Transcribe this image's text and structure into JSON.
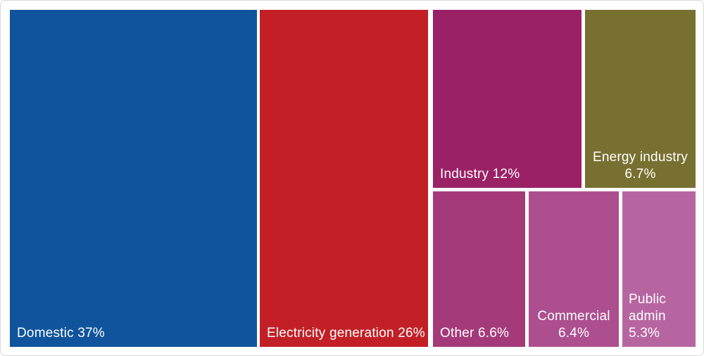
{
  "chart_data": {
    "type": "treemap",
    "title": "",
    "unit": "%",
    "legend": false,
    "background_color": "#ffffff",
    "tile_gap_color": "#ffffff",
    "frame_border_color": "#d8d8d8",
    "label_text_color": "#ffffff",
    "points": [
      {
        "name": "Domestic",
        "value": 37,
        "color": "#10549d",
        "label": "Domestic 37%",
        "label_lines": [
          "Domestic 37%"
        ]
      },
      {
        "name": "Electricity generation",
        "value": 26,
        "color": "#c22026",
        "label": "Electricity generation 26%",
        "label_lines": [
          "Electricity generation 26%"
        ]
      },
      {
        "name": "Industry",
        "value": 12,
        "color": "#9a2166",
        "label": "Industry 12%",
        "label_lines": [
          "Industry 12%"
        ]
      },
      {
        "name": "Energy industry",
        "value": 6.7,
        "color": "#787030",
        "label": "Energy industry 6.7%",
        "label_lines": [
          "Energy industry",
          "6.7%"
        ]
      },
      {
        "name": "Other",
        "value": 6.6,
        "color": "#a53a7a",
        "label": "Other 6.6%",
        "label_lines": [
          "Other 6.6%"
        ]
      },
      {
        "name": "Commercial",
        "value": 6.4,
        "color": "#ad4f8e",
        "label": "Commercial 6.4%",
        "label_lines": [
          "Commercial",
          "6.4%"
        ]
      },
      {
        "name": "Public admin",
        "value": 5.3,
        "color": "#b765a0",
        "label": "Public admin 5.3%",
        "label_lines": [
          "Public",
          "admin",
          "5.3%"
        ]
      }
    ]
  }
}
